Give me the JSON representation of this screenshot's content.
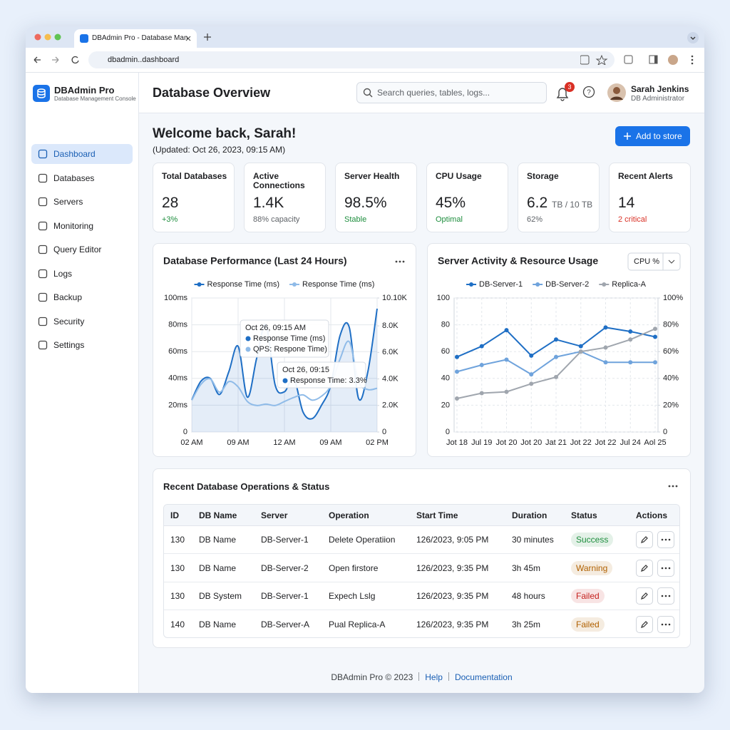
{
  "browser": {
    "tab_title": "DBAdmin Pro - Database Man",
    "url": "dbadmin..dashboard"
  },
  "sidebar": {
    "app_name": "DBAdmin Pro",
    "app_subtitle": "Database Management Console",
    "nav": [
      "Dashboard",
      "Databases",
      "Servers",
      "Monitoring",
      "Query Editor",
      "Logs",
      "Backup",
      "Security",
      "Settings"
    ]
  },
  "header": {
    "title": "Database Overview",
    "search_placeholder": "Search queries, tables, logs...",
    "notifications": 3,
    "user_name": "Sarah Jenkins",
    "user_role": "DB Administrator"
  },
  "welcome": {
    "title": "Welcome back, Sarah!",
    "updated": "(Updated: Oct 26, 2023, 09:15 AM)",
    "button": "Add to store"
  },
  "stats": [
    {
      "label": "Total Databases",
      "value": "28",
      "note": "+3%",
      "note_color": "#1e8e3e"
    },
    {
      "label": "Active Connections",
      "value": "1.4K",
      "note": "88% capacity",
      "note_color": "#5f6368"
    },
    {
      "label": "Server Health",
      "value": "98.5%",
      "note": "Stable",
      "note_color": "#1e8e3e"
    },
    {
      "label": "CPU Usage",
      "value": "45%",
      "note": "Optimal",
      "note_color": "#1e8e3e"
    },
    {
      "label": "Storage",
      "value": "6.2",
      "unit": "TB / 10 TB",
      "note": "62%",
      "note_color": "#5f6368"
    },
    {
      "label": "Recent Alerts",
      "value": "14",
      "note": "2 critical",
      "note_color": "#d93025"
    }
  ],
  "chart_data": [
    {
      "type": "line",
      "title": "Database Performance (Last 24 Hours)",
      "smooth": true,
      "grid": true,
      "x": [
        0,
        1,
        2,
        3,
        4,
        5,
        6,
        7,
        8,
        9,
        10,
        11,
        12,
        13,
        14,
        15,
        16,
        17,
        18,
        19,
        20
      ],
      "xlim": [
        0,
        20
      ],
      "xticks": [
        {
          "value": 0,
          "label": "02 AM"
        },
        {
          "value": 5,
          "label": "09 AM"
        },
        {
          "value": 10,
          "label": "12 AM"
        },
        {
          "value": 15,
          "label": "09 AM"
        },
        {
          "value": 20,
          "label": "02 PM"
        }
      ],
      "ylim": [
        0,
        100
      ],
      "yticks": [
        0,
        {
          "value": 20,
          "label": "20ms"
        },
        {
          "value": 40,
          "label": "40ms"
        },
        {
          "value": 60,
          "label": "60ms"
        },
        {
          "value": 80,
          "label": "80ms"
        },
        {
          "value": 100,
          "label": "100ms"
        }
      ],
      "y2lim": [
        0,
        10100
      ],
      "y2ticks": [
        0,
        {
          "value": 2000,
          "label": "2.0K"
        },
        {
          "value": 4000,
          "label": "4.0K"
        },
        {
          "value": 6000,
          "label": "6.0K"
        },
        {
          "value": 8000,
          "label": "8.0K"
        },
        {
          "value": 10100,
          "label": "10.10K"
        }
      ],
      "series": [
        {
          "name": "Response Time (ms)",
          "color": "#1f6fc5",
          "fill": true,
          "values": [
            24,
            38,
            40,
            28,
            45,
            64,
            26,
            55,
            80,
            35,
            30,
            40,
            15,
            10,
            20,
            35,
            72,
            78,
            25,
            45,
            92
          ]
        },
        {
          "name": "Response Time (ms)",
          "color": "#8fbbe8",
          "axis": "y2",
          "values": [
            2400,
            3600,
            4000,
            3000,
            3800,
            3400,
            2300,
            2000,
            2100,
            2000,
            2300,
            2600,
            2800,
            2400,
            2700,
            3500,
            5500,
            6800,
            3800,
            3200,
            3300
          ]
        }
      ],
      "annotations": [
        {
          "title": "Oct 26, 09:15 AM",
          "lines": [
            "Response Time (ms)",
            "QPS: Respone Time)"
          ]
        },
        {
          "title": "Oct 26, 09:15",
          "lines": [
            "Response Time: 3.3%"
          ]
        }
      ]
    },
    {
      "type": "line",
      "title": "Server Activity & Resource Usage",
      "dropdown": "CPU %",
      "smooth": false,
      "grid": true,
      "grid_style": "dashed",
      "categories": [
        "Jot 18",
        "Jul 19",
        "Jot 20",
        "Jot 20",
        "Jat 21",
        "Jot 22",
        "Jot 22",
        "Jul 24",
        "Aol 25"
      ],
      "ylim": [
        0,
        100
      ],
      "yticks": [
        0,
        20,
        40,
        60,
        80,
        100
      ],
      "y2lim": [
        0,
        100
      ],
      "y2ticks": [
        0,
        {
          "value": 20,
          "label": "20%"
        },
        {
          "value": 40,
          "label": "40%"
        },
        {
          "value": 60,
          "label": "60%"
        },
        {
          "value": 80,
          "label": "80%"
        },
        {
          "value": 100,
          "label": "100%"
        }
      ],
      "series": [
        {
          "name": "DB-Server-1",
          "color": "#1f6fc5",
          "values": [
            56,
            64,
            76,
            57,
            69,
            64,
            78,
            75,
            71
          ]
        },
        {
          "name": "DB-Server-2",
          "color": "#6fa3dc",
          "values": [
            45,
            50,
            54,
            43,
            56,
            60,
            52,
            52,
            52
          ]
        },
        {
          "name": "Replica-A",
          "color": "#a0a6ae",
          "values": [
            25,
            29,
            30,
            36,
            41,
            60,
            63,
            69,
            77
          ]
        }
      ]
    }
  ],
  "table": {
    "title": "Recent Database Operations & Status",
    "columns": [
      "ID",
      "DB Name",
      "Server",
      "Operation",
      "Start Time",
      "Duration",
      "Status",
      "Actions"
    ],
    "rows": [
      {
        "cells": [
          "130",
          "DB Name",
          "DB-Server-1",
          "Delete Operatiion",
          "126/2023, 9:05 PM",
          "30 minutes",
          "Success"
        ],
        "status_color": "#1e8e3e"
      },
      {
        "cells": [
          "130",
          "DB Name",
          "DB-Server-2",
          "Open firstore",
          "126/2023, 9:35 PM",
          "3h 45m",
          "Warning"
        ],
        "status_color": "#b06000"
      },
      {
        "cells": [
          "130",
          "DB System",
          "DB-Server-1",
          "Expech Lslg",
          "126/2023, 9:35 PM",
          "48 hours",
          "Failed"
        ],
        "status_color": "#c5221f"
      },
      {
        "cells": [
          "140",
          "DB Name",
          "DB-Server-A",
          "Pual Replica-A",
          "126/2023, 9:35 PM",
          "3h 25m",
          "Failed"
        ],
        "status_color": "#b06000"
      }
    ]
  },
  "footer": {
    "copyright": "DBAdmin Pro © 2023",
    "links": [
      "Help",
      "Documentation"
    ]
  }
}
